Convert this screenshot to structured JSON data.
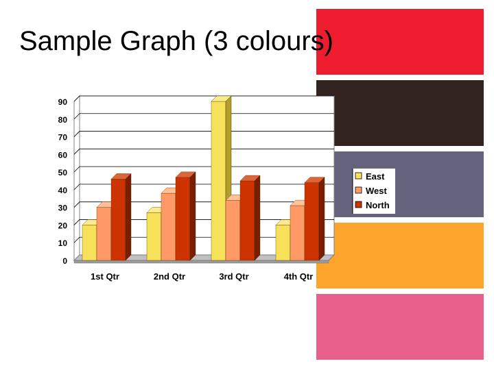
{
  "slide": {
    "title": "Sample Graph (3 colours)",
    "swatch_colors": [
      "#ED1C2E",
      "#33231F",
      "#65627C",
      "#FCA42C",
      "#E9618A"
    ]
  },
  "chart_data": {
    "type": "bar",
    "categories": [
      "1st Qtr",
      "2nd Qtr",
      "3rd Qtr",
      "4th Qtr"
    ],
    "series": [
      {
        "name": "East",
        "values": [
          20,
          27,
          90,
          20
        ],
        "color": "#F8E15A",
        "top_color": "#FBEB8C",
        "side_color": "#B39E2A"
      },
      {
        "name": "West",
        "values": [
          30,
          38,
          34,
          31
        ],
        "color": "#FF9A66",
        "top_color": "#FFC09A",
        "side_color": "#B8643A"
      },
      {
        "name": "North",
        "values": [
          46,
          47,
          45,
          44
        ],
        "color": "#CC3300",
        "top_color": "#E0643A",
        "side_color": "#7A1E00"
      }
    ],
    "ylim": [
      0,
      90
    ],
    "yticks": [
      0,
      10,
      20,
      30,
      40,
      50,
      60,
      70,
      80,
      90
    ],
    "grid": true,
    "legend_position": "right",
    "title": "",
    "xlabel": "",
    "ylabel": ""
  }
}
